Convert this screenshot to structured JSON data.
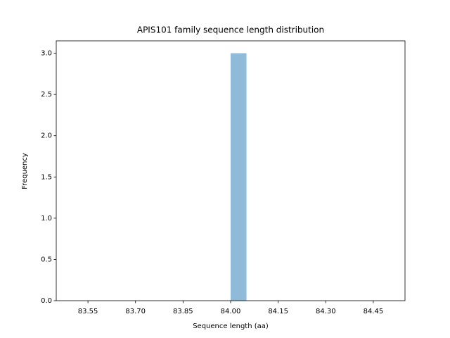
{
  "chart_data": {
    "type": "histogram",
    "title": "APIS101 family sequence length distribution",
    "x_label": "Sequence length (aa)",
    "y_label": "Frequency",
    "bins": [
      83.5,
      83.55,
      83.6,
      83.65,
      83.7,
      83.75,
      83.8,
      83.85,
      83.9,
      83.95,
      84.0,
      84.05,
      84.1,
      84.15,
      84.2,
      84.25,
      84.3,
      84.35,
      84.4,
      84.45,
      84.5
    ],
    "values": [
      0,
      0,
      0,
      0,
      0,
      0,
      0,
      0,
      0,
      0,
      3,
      0,
      0,
      0,
      0,
      0,
      0,
      0,
      0,
      0
    ],
    "color": "#8fbbd9",
    "xlim": [
      83.45,
      84.55
    ],
    "xticks": [
      83.55,
      {
        "value": 83.7,
        "label": "83.70"
      },
      {
        "value": 83.85,
        "label": "83.85"
      },
      {
        "value": 84.0,
        "label": "84.00"
      },
      84.15,
      {
        "value": 84.3,
        "label": "84.30"
      },
      84.45
    ],
    "ylim": [
      0,
      3.15
    ],
    "yticks": [
      {
        "value": 0,
        "label": "0.0"
      },
      {
        "value": 0.5,
        "label": "0.5"
      },
      {
        "value": 1,
        "label": "1.0"
      },
      {
        "value": 1.5,
        "label": "1.5"
      },
      {
        "value": 2,
        "label": "2.0"
      },
      {
        "value": 2.5,
        "label": "2.5"
      },
      {
        "value": 3,
        "label": "3.0"
      }
    ],
    "grid": false
  }
}
